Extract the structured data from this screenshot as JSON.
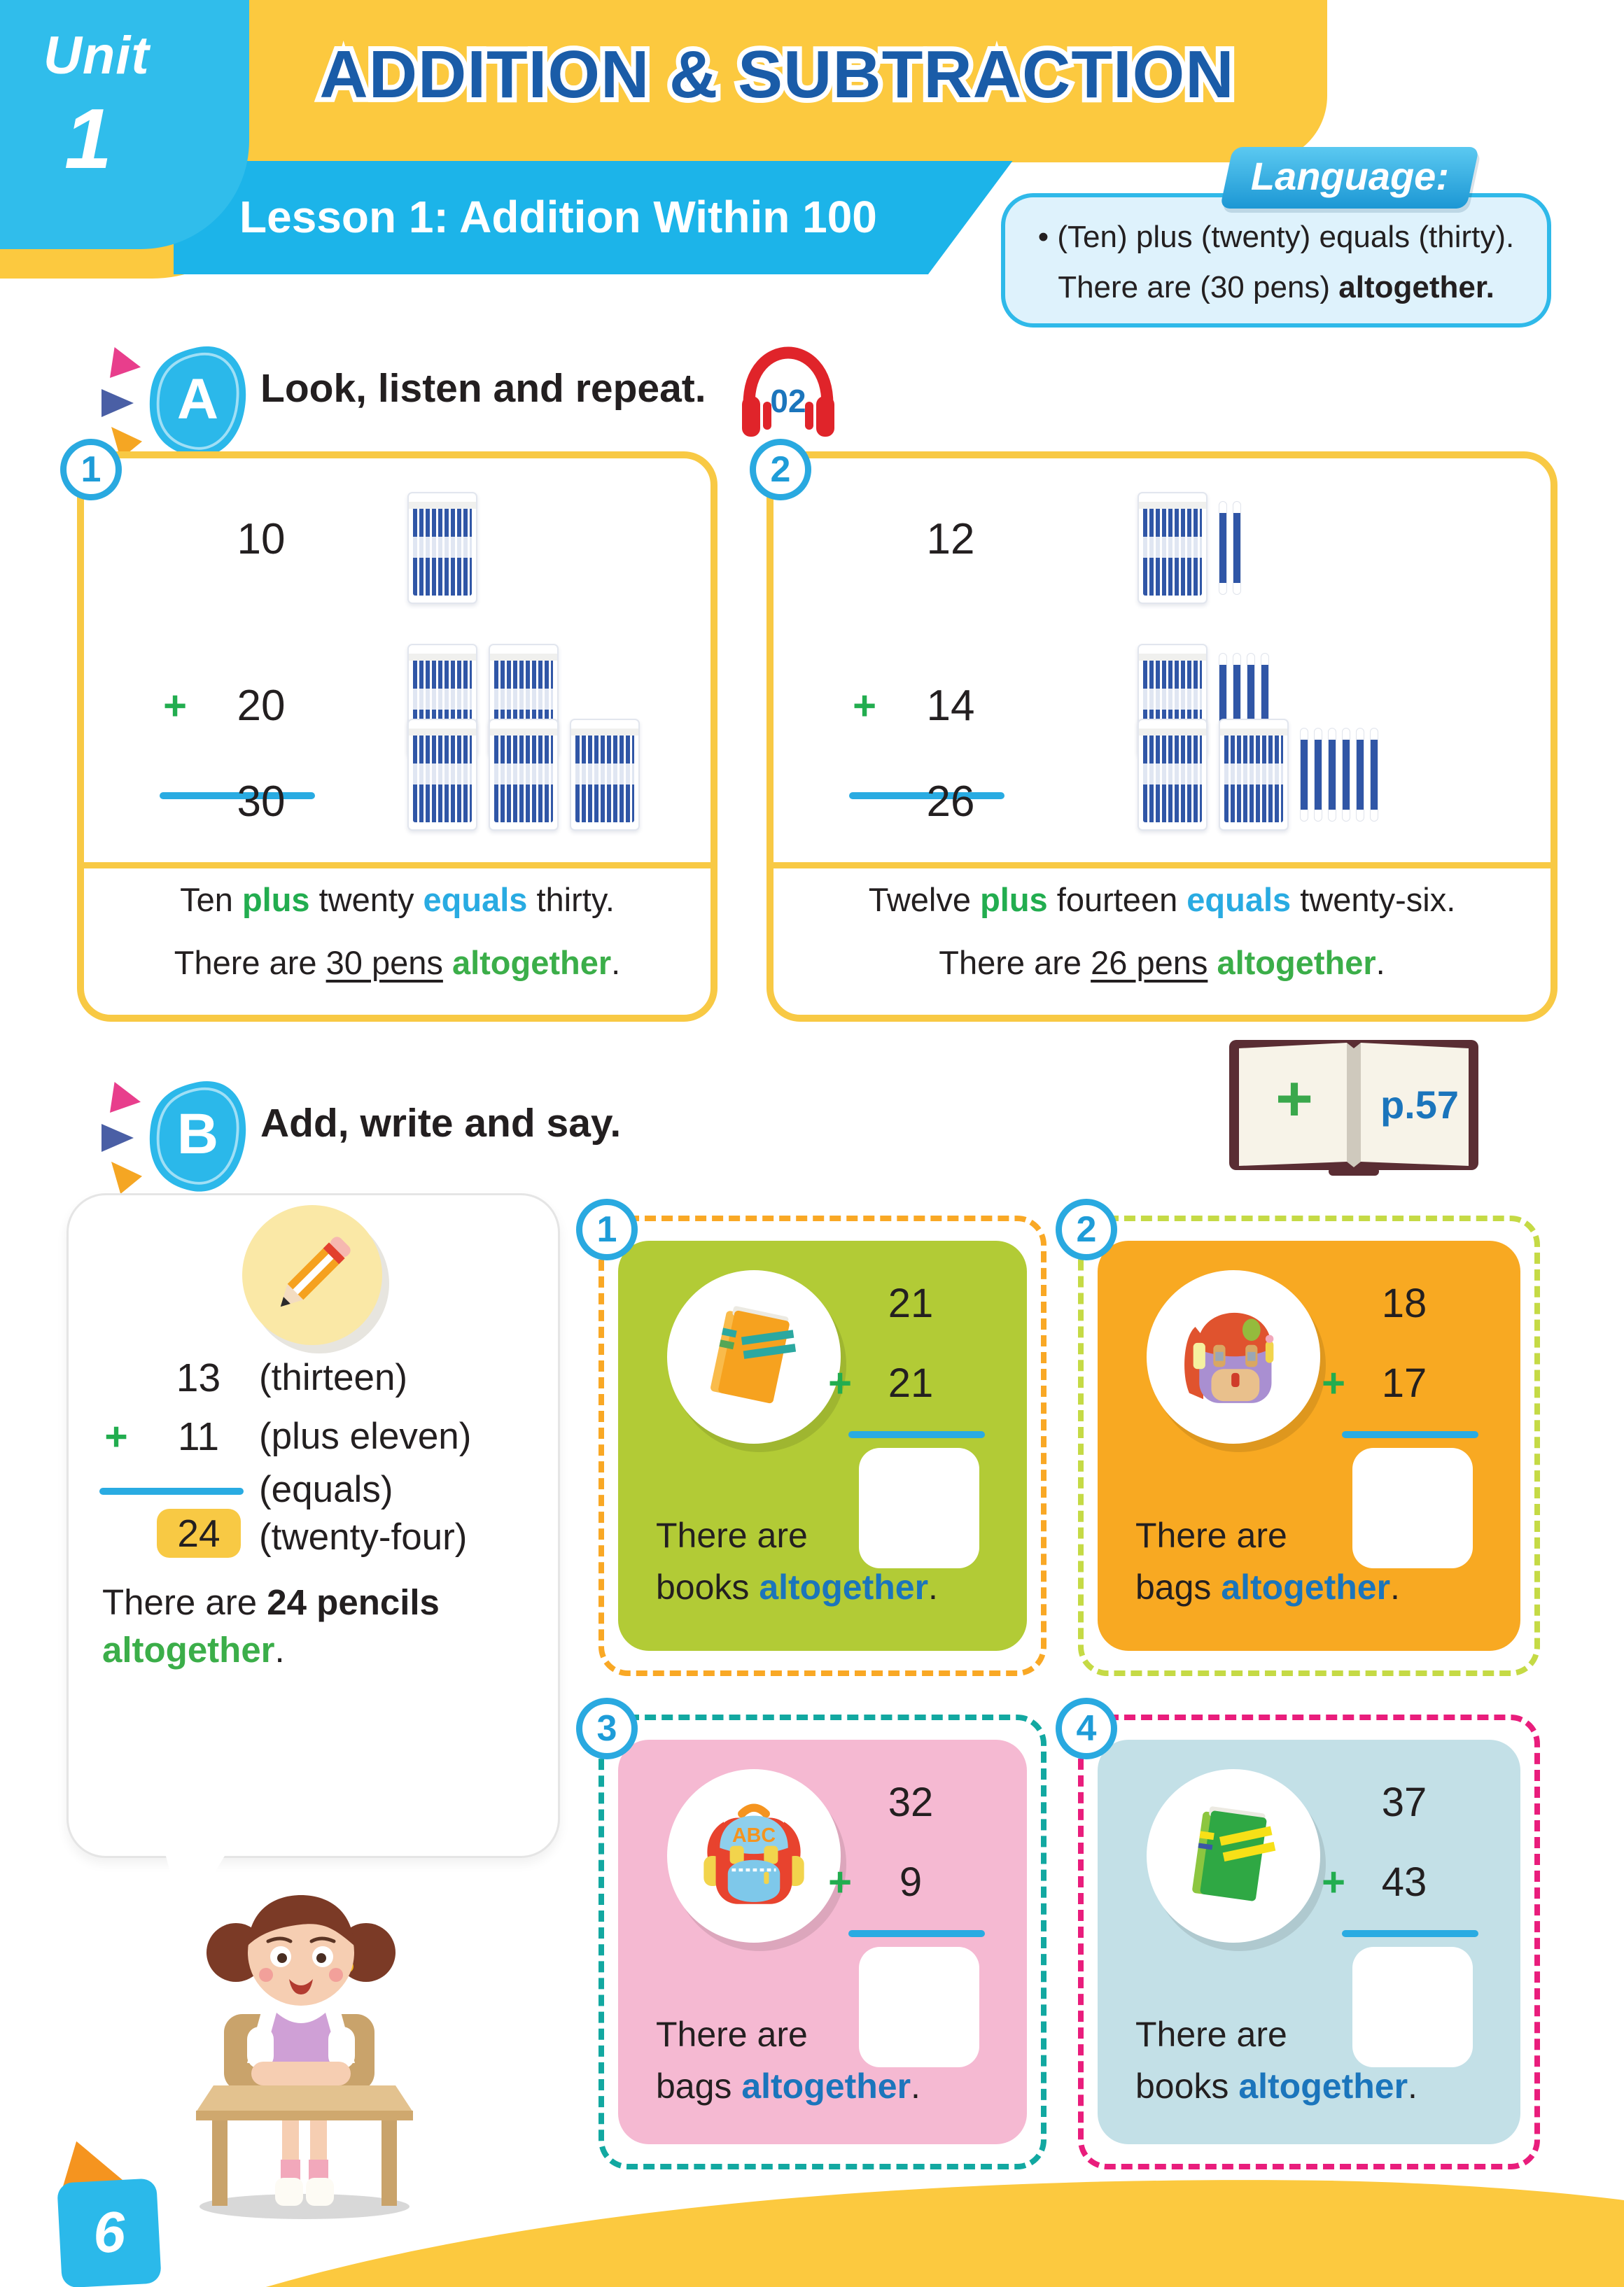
{
  "page": {
    "unit_label": "Unit",
    "unit_number": "1",
    "title": "ADDITION & SUBTRACTION",
    "lesson": "Lesson 1: Addition Within 100",
    "page_number": "6"
  },
  "language": {
    "tab": "Language:",
    "line1": "• (Ten) plus (twenty) equals (thirty).",
    "line2_pre": "There are (30 pens) ",
    "line2_bold": "altogether."
  },
  "section_a": {
    "badge": "A",
    "title": "Look, listen and repeat.",
    "audio_track": "02",
    "examples": [
      {
        "num": "1",
        "plus_sign": "+",
        "addend1": "10",
        "addend2": "20",
        "sum": "30",
        "pens_row1": {
          "packs": 1,
          "loose": 0
        },
        "pens_row2": {
          "packs": 2,
          "loose": 0
        },
        "pens_row3": {
          "packs": 3,
          "loose": 0
        },
        "sentence1": {
          "a": "Ten ",
          "plus": "plus",
          "b": " twenty ",
          "equals": "equals",
          "c": " thirty."
        },
        "sentence2": {
          "a": "There are ",
          "underlined": "30 pens",
          "b": " ",
          "alt": "altogether",
          "end": "."
        }
      },
      {
        "num": "2",
        "plus_sign": "+",
        "addend1": "12",
        "addend2": "14",
        "sum": "26",
        "pens_row1": {
          "packs": 1,
          "loose": 2
        },
        "pens_row2": {
          "packs": 1,
          "loose": 4
        },
        "pens_row3": {
          "packs": 2,
          "loose": 6
        },
        "sentence1": {
          "a": "Twelve ",
          "plus": "plus",
          "b": " fourteen ",
          "equals": "equals",
          "c": " twenty-six."
        },
        "sentence2": {
          "a": "There are ",
          "underlined": "26 pens",
          "b": " ",
          "alt": "altogether",
          "end": "."
        }
      }
    ]
  },
  "section_b": {
    "badge": "B",
    "title": "Add, write and say.",
    "book_ref": {
      "plus": "+",
      "page": "p.57"
    },
    "bubble": {
      "row1": {
        "num": "13",
        "word": "(thirteen)"
      },
      "row2": {
        "plus": "+",
        "num": "11",
        "word": "(plus eleven)"
      },
      "row3": {
        "word": "(equals)"
      },
      "row4": {
        "num": "24",
        "word": "(twenty-four)"
      },
      "sentence1_pre": "There are ",
      "sentence1_bold": "24 pencils",
      "sentence2_alt": "altogether",
      "sentence2_end": "."
    },
    "exercises": [
      {
        "num": "1",
        "icon": "orange-book-icon",
        "addend1": "21",
        "plus": "+",
        "addend2": "21",
        "line1": "There are",
        "noun": "books ",
        "alt": "altogether",
        "end": ".",
        "card_color": "#b2cb36",
        "dash_color": "#f9a825"
      },
      {
        "num": "2",
        "icon": "purple-backpack-icon",
        "addend1": "18",
        "plus": "+",
        "addend2": "17",
        "line1": "There are",
        "noun": "bags ",
        "alt": "altogether",
        "end": ".",
        "card_color": "#f8a922",
        "dash_color": "#c5da45"
      },
      {
        "num": "3",
        "icon": "abc-backpack-icon",
        "abc_label": "ABC",
        "addend1": "32",
        "plus": "+",
        "addend2": "9",
        "line1": "There are",
        "noun": "bags ",
        "alt": "altogether",
        "end": ".",
        "card_color": "#f5b9d2",
        "dash_color": "#12a8a1"
      },
      {
        "num": "4",
        "icon": "green-book-icon",
        "addend1": "37",
        "plus": "+",
        "addend2": "43",
        "line1": "There are",
        "noun": "books ",
        "alt": "altogether",
        "end": ".",
        "card_color": "#c3e0e7",
        "dash_color": "#e91d7c"
      }
    ]
  },
  "colors": {
    "plus_green": "#22ad4f",
    "equals_blue": "#29abe2",
    "altogether_green": "#3bae49",
    "altogether_blue": "#1b75bc",
    "box_border_yellow": "#f8c944",
    "header_yellow": "#fcc93f",
    "banner_blue": "#1cb4e9",
    "unit_tab_blue": "#30bdeb",
    "title_blue": "#1a5ca8"
  }
}
